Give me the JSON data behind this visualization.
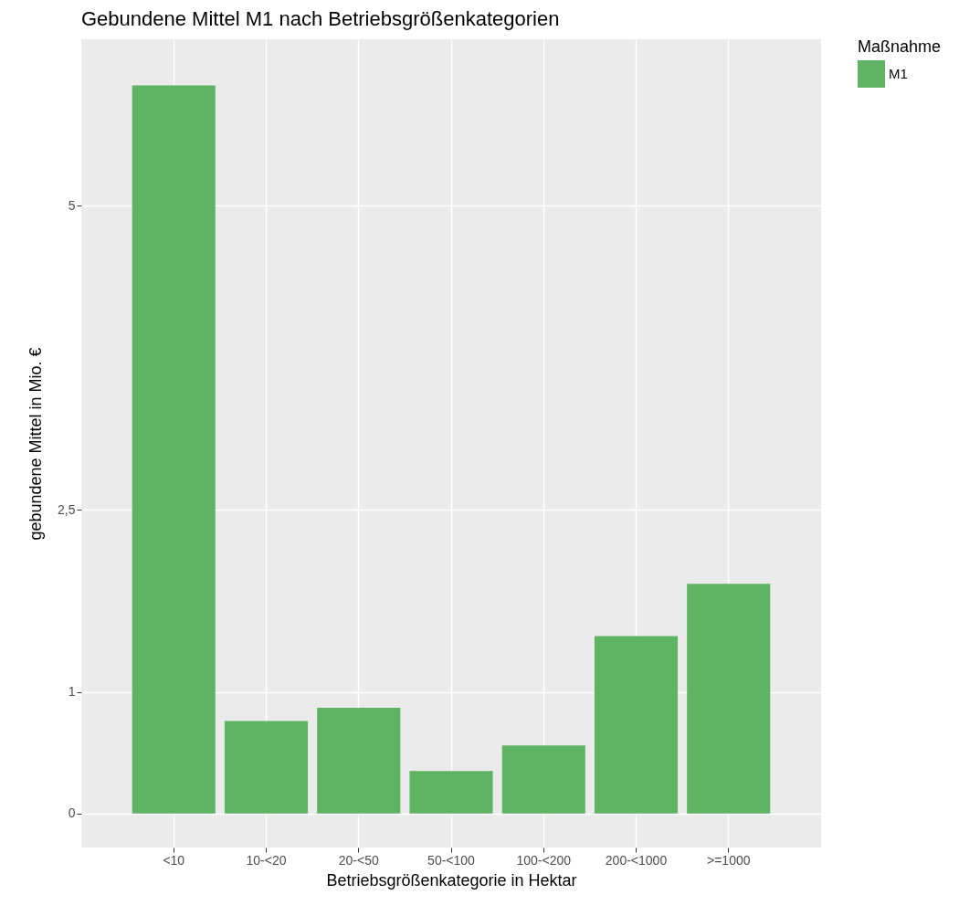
{
  "chart_data": {
    "type": "bar",
    "title": "Gebundene Mittel M1 nach Betriebsgrößenkategorien",
    "xlabel": "Betriebsgrößenkategorie in Hektar",
    "ylabel": "gebundene Mittel in Mio. €",
    "legend_title": "Maßnahme",
    "categories": [
      "<10",
      "10-<20",
      "20-<50",
      "50-<100",
      "100-<200",
      "200-<1000",
      ">=1000"
    ],
    "series": [
      {
        "name": "M1",
        "color": "#5fb464",
        "values": [
          5.99,
          0.76,
          0.87,
          0.35,
          0.56,
          1.46,
          1.89
        ]
      }
    ],
    "ylim": [
      -0.28,
      6.37
    ],
    "yticks": [
      0,
      1,
      {
        "value": 2.5,
        "label": "2,5"
      },
      5
    ],
    "grid": true,
    "legend": "right"
  }
}
